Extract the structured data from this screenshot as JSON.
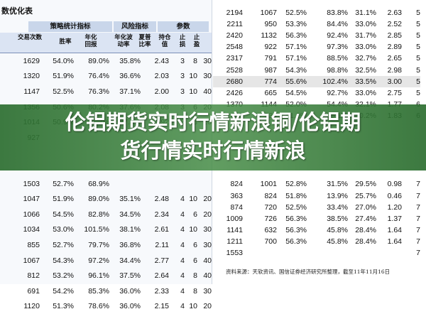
{
  "left_panel": {
    "title": "数优化表",
    "group_headers": {
      "strategy": "策略统计指标",
      "risk": "风险指标",
      "params": "参数"
    },
    "col_headers": [
      "交易次数",
      "胜率",
      "年化回报",
      "年化波动率",
      "夏普比率",
      "持仓值",
      "止损",
      "止盈"
    ],
    "rows": [
      [
        "1629",
        "54.0%",
        "89.0%",
        "35.8%",
        "2.43",
        "3",
        "8",
        "30"
      ],
      [
        "1320",
        "51.9%",
        "76.4%",
        "36.6%",
        "2.03",
        "3",
        "10",
        "30"
      ],
      [
        "1147",
        "52.5%",
        "76.3%",
        "37.1%",
        "2.00",
        "3",
        "10",
        "40"
      ],
      [
        "1356",
        "50.6%",
        "80.2%",
        "37.6%",
        "2.08",
        "3",
        "6",
        "20"
      ],
      [
        "1014",
        "50.9%",
        "71.7%",
        "37.3%",
        "1.92",
        "3",
        "8",
        "20"
      ],
      [
        "927",
        "",
        "",
        "",
        "",
        "",
        "",
        ""
      ],
      [
        "",
        "",
        "",
        "",
        "",
        "",
        "",
        ""
      ],
      [
        "",
        "",
        "",
        "",
        "",
        "",
        "",
        ""
      ],
      [
        "1503",
        "52.7%",
        "68.9%",
        "",
        "",
        "",
        "",
        ""
      ],
      [
        "1047",
        "51.9%",
        "89.0%",
        "35.1%",
        "2.48",
        "4",
        "10",
        "20"
      ],
      [
        "1066",
        "54.5%",
        "82.8%",
        "34.5%",
        "2.34",
        "4",
        "6",
        "20"
      ],
      [
        "1034",
        "53.0%",
        "101.5%",
        "38.1%",
        "2.61",
        "4",
        "10",
        "30"
      ],
      [
        "855",
        "52.7%",
        "79.7%",
        "36.8%",
        "2.11",
        "4",
        "6",
        "30"
      ],
      [
        "1067",
        "54.3%",
        "97.2%",
        "34.4%",
        "2.77",
        "4",
        "6",
        "40"
      ],
      [
        "812",
        "53.2%",
        "96.1%",
        "37.5%",
        "2.64",
        "4",
        "8",
        "40"
      ],
      [
        "691",
        "54.2%",
        "85.3%",
        "36.0%",
        "2.33",
        "4",
        "8",
        "30"
      ],
      [
        "1120",
        "51.3%",
        "78.6%",
        "36.0%",
        "2.15",
        "4",
        "10",
        "20"
      ]
    ]
  },
  "right_panel": {
    "rows": [
      [
        "2194",
        "1067",
        "52.5%",
        "83.8%",
        "31.1%",
        "2.63",
        "5"
      ],
      [
        "2211",
        "950",
        "53.3%",
        "84.4%",
        "33.0%",
        "2.52",
        "5"
      ],
      [
        "2420",
        "1132",
        "56.3%",
        "92.4%",
        "31.7%",
        "2.85",
        "5"
      ],
      [
        "2548",
        "922",
        "57.1%",
        "97.3%",
        "33.0%",
        "2.89",
        "5"
      ],
      [
        "2317",
        "791",
        "57.1%",
        "88.5%",
        "32.7%",
        "2.65",
        "5"
      ],
      [
        "2528",
        "987",
        "54.3%",
        "98.8%",
        "32.5%",
        "2.98",
        "5"
      ],
      [
        "2680",
        "774",
        "55.6%",
        "102.4%",
        "33.5%",
        "3.00",
        "5"
      ],
      [
        "2426",
        "665",
        "54.5%",
        "92.7%",
        "33.0%",
        "2.75",
        "5"
      ],
      [
        "1370",
        "1144",
        "52.0%",
        "54.4%",
        "32.1%",
        "1.77",
        "6"
      ],
      [
        "1060",
        "939",
        "51.2%",
        "55.1%",
        "30.2%",
        "1.83",
        "6"
      ],
      [
        "",
        "",
        "",
        "",
        "",
        "",
        ""
      ],
      [
        "",
        "",
        "",
        "",
        "",
        "",
        ""
      ],
      [
        "",
        "",
        "",
        "",
        "",
        "",
        ""
      ],
      [
        "",
        "",
        "",
        "",
        "",
        "",
        ""
      ],
      [
        "",
        "",
        "",
        "",
        "",
        "",
        ""
      ],
      [
        "824",
        "1001",
        "52.8%",
        "31.5%",
        "29.5%",
        "0.98",
        "7"
      ],
      [
        "363",
        "824",
        "51.8%",
        "13.9%",
        "25.7%",
        "0.46",
        "7"
      ],
      [
        "874",
        "720",
        "52.5%",
        "33.4%",
        "27.0%",
        "1.20",
        "7"
      ],
      [
        "1009",
        "726",
        "56.3%",
        "38.5%",
        "27.4%",
        "1.37",
        "7"
      ],
      [
        "1141",
        "632",
        "56.3%",
        "45.8%",
        "28.4%",
        "1.64",
        "7"
      ],
      [
        "1211",
        "700",
        "56.3%",
        "45.8%",
        "28.4%",
        "1.64",
        "7"
      ],
      [
        "1553",
        "",
        "",
        "",
        "",
        "",
        "7"
      ]
    ],
    "highlight_row": 6,
    "source": "资料来源：天软资讯、国信证券经济研究所整理，截至11年11月16日"
  },
  "banner": {
    "line1": "伦铝期货实时行情新浪铜/伦铝期",
    "line2": "货行情实时行情新浪"
  },
  "colors": {
    "header_bg": "#c9d6ea",
    "banner_green": "#2c6e30",
    "highlight_row": "#e6e6e6"
  }
}
